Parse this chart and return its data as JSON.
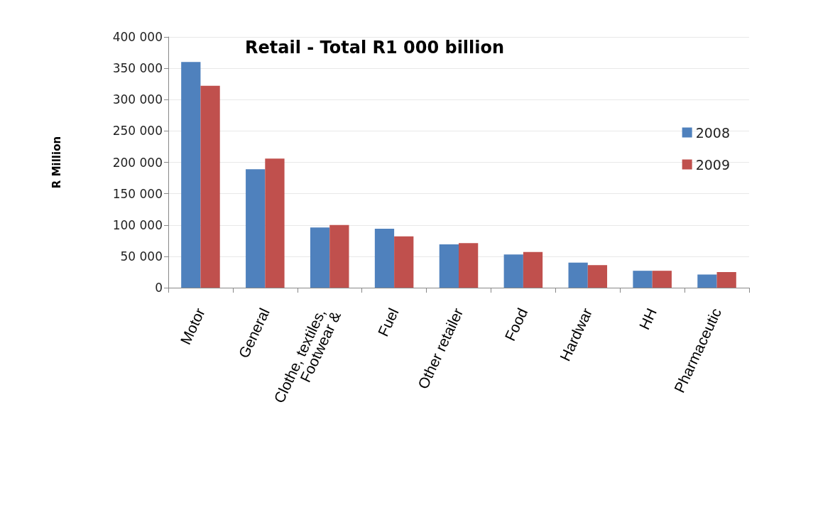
{
  "chart_data": {
    "type": "bar",
    "title": "Retail - Total R1 000 billion",
    "ylabel": "R Million",
    "categories": [
      "Motor",
      "General",
      "Clothe, textiles, Footwear &",
      "Fuel",
      "Other retailer",
      "Food",
      "Hardwar",
      "HH",
      "Pharmaceutic"
    ],
    "series": [
      {
        "name": "2008",
        "color": "#4f81bd",
        "values": [
          360000,
          189000,
          96000,
          94000,
          69000,
          53000,
          40000,
          27000,
          21000
        ]
      },
      {
        "name": "2009",
        "color": "#c0504d",
        "values": [
          322000,
          206000,
          100000,
          82000,
          71000,
          57000,
          36000,
          27000,
          25000
        ]
      }
    ],
    "ylim": [
      0,
      400000
    ],
    "yticks": [
      {
        "value": 0,
        "label": "0"
      },
      {
        "value": 50000,
        "label": "50 000"
      },
      {
        "value": 100000,
        "label": "100 000"
      },
      {
        "value": 150000,
        "label": "150 000"
      },
      {
        "value": 200000,
        "label": "200 000"
      },
      {
        "value": 250000,
        "label": "250 000"
      },
      {
        "value": 300000,
        "label": "300 000"
      },
      {
        "value": 350000,
        "label": "350 000"
      },
      {
        "value": 400000,
        "label": "400 000"
      }
    ],
    "grid": "y",
    "legend": "right"
  }
}
